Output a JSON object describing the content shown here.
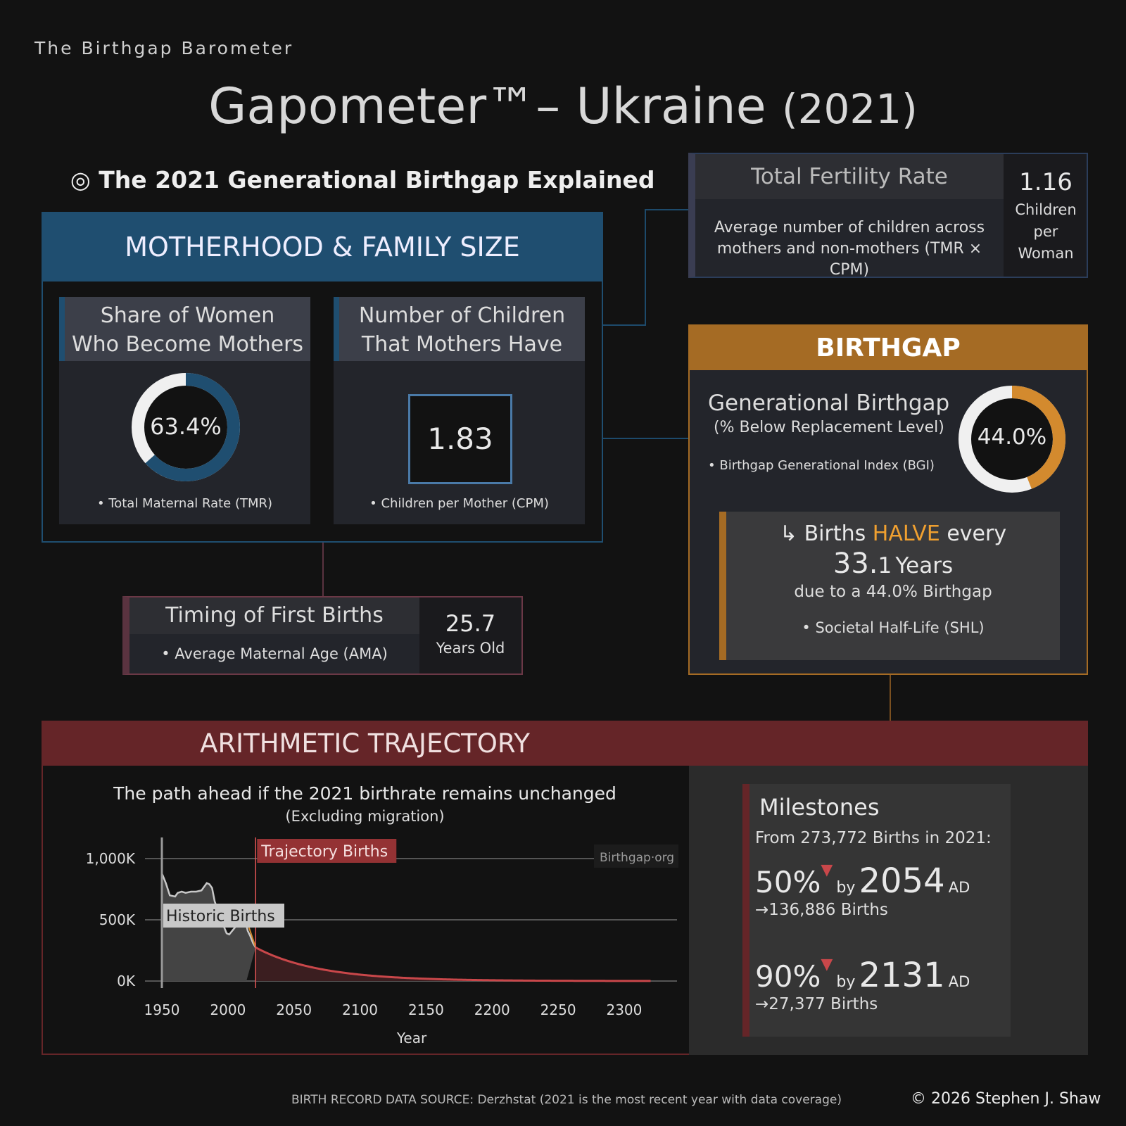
{
  "brand": "The Birthgap Barometer",
  "title": {
    "main": "Gapometer™– Ukraine",
    "year": "(2021)"
  },
  "section_heading": "◎ The 2021 Generational Birthgap Explained",
  "motherhood": {
    "header": "MOTHERHOOD & FAMILY SIZE",
    "share_card": {
      "title1": "Share of Women",
      "title2": "Who Become Mothers",
      "value": "63.4%",
      "percent": 63.4,
      "note": "• Total Maternal Rate (TMR)"
    },
    "children_card": {
      "title1": "Number of Children",
      "title2": "That Mothers Have",
      "value": "1.83",
      "note": "• Children per Mother (CPM)"
    }
  },
  "timing": {
    "title": "Timing of First Births",
    "note": "• Average Maternal Age (AMA)",
    "value": "25.7",
    "unit": "Years Old"
  },
  "tfr": {
    "title": "Total Fertility Rate",
    "desc1": "Average number of children across",
    "desc2": "mothers and non-mothers (TMR × CPM)",
    "value": "1.16",
    "unit1": "Children",
    "unit2": "per",
    "unit3": "Woman"
  },
  "birthgap": {
    "header": "BIRTHGAP",
    "title": "Generational Birthgap",
    "subtitle": "(% Below Replacement Level)",
    "note": "• Birthgap Generational Index (BGI)",
    "value": "44.0%",
    "percent": 44.0,
    "shl": {
      "arrow": "↳",
      "pre": "Births",
      "halve": "HALVE",
      "post": "every",
      "years_big": "33.",
      "years_small": "1",
      "years_unit": "Years",
      "due": "due to a 44.0% Birthgap",
      "note": "• Societal Half-Life (SHL)"
    }
  },
  "trajectory": {
    "header": "ARITHMETIC TRAJECTORY",
    "subtitle": "The path ahead if the 2021 birthrate remains unchanged",
    "subtitle2": "(Excluding migration)",
    "milestones": {
      "title": "Milestones",
      "from": "From 273,772 Births in 2021:",
      "items": [
        {
          "pct": "50%",
          "by": "by",
          "year": "2054",
          "ad": "AD",
          "births": "→136,886 Births"
        },
        {
          "pct": "90%",
          "by": "by",
          "year": "2131",
          "ad": "AD",
          "births": "→27,377 Births"
        }
      ]
    }
  },
  "footer": {
    "source": "BIRTH RECORD DATA SOURCE: Derzhstat (2021 is the most recent year with data coverage)",
    "copyright": "© 2026 Stephen J. Shaw"
  },
  "colors": {
    "blue": "#1f4e70",
    "orange": "#d38a2e",
    "birthgap": "#a56b24",
    "red": "#652528",
    "trajectory": "#c9474a",
    "historic": "#c8c8c8"
  },
  "chart_data": {
    "type": "area",
    "xlabel": "Year",
    "ylabel": "",
    "xlim": [
      1950,
      2320
    ],
    "ylim": [
      0,
      1000000
    ],
    "x_ticks": [
      "1950",
      "2000",
      "2050",
      "2100",
      "2150",
      "2200",
      "2250",
      "2300"
    ],
    "y_ticks": [
      "0K",
      "500K",
      "1,000K"
    ],
    "grid": true,
    "watermark": "Birthgap·org",
    "annotations": [
      "Trajectory Births",
      "Historic Births"
    ],
    "reference_year": 2021,
    "historic": {
      "name": "Historic Births",
      "x": [
        1950,
        1953,
        1956,
        1960,
        1962,
        1965,
        1968,
        1972,
        1976,
        1980,
        1984,
        1986,
        1988,
        1990,
        1993,
        1996,
        1999,
        2001,
        2004,
        2007,
        2010,
        2013,
        2015,
        2017,
        2019,
        2021
      ],
      "y": [
        880000,
        800000,
        700000,
        690000,
        720000,
        730000,
        720000,
        730000,
        730000,
        740000,
        800000,
        790000,
        760000,
        650000,
        560000,
        470000,
        390000,
        380000,
        420000,
        460000,
        500000,
        500000,
        410000,
        365000,
        310000,
        273772
      ]
    },
    "trajectory": {
      "name": "Trajectory Births",
      "start_year": 2021,
      "start_value": 273772,
      "half_life_years": 33.1,
      "end_year": 2320
    }
  }
}
